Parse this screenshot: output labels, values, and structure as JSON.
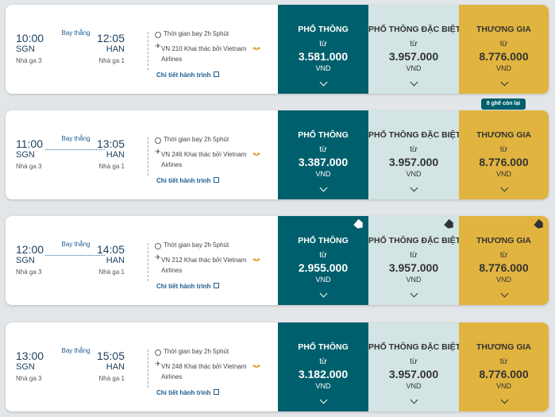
{
  "flights": [
    {
      "dep_time": "10:00",
      "dep_city": "SGN",
      "dep_terminal": "Nhà ga 3",
      "arr_time": "12:05",
      "arr_city": "HAN",
      "arr_terminal": "Nhà ga 1",
      "nonstop": "Bay thẳng",
      "duration": "Thời gian bay 2h 5phút",
      "flight_info": "VN 210 Khai thác bởi Vietnam Airlines",
      "details": "Chi tiết hành trình",
      "fares": [
        {
          "class": "PHỔ THÔNG",
          "from": "từ",
          "price": "3.581.000",
          "currency": "VND"
        },
        {
          "class": "PHỔ THÔNG ĐẶC BIỆT",
          "from": "từ",
          "price": "3.957.000",
          "currency": "VND"
        },
        {
          "class": "THƯƠNG GIA",
          "from": "từ",
          "price": "8.776.000",
          "currency": "VND"
        }
      ]
    },
    {
      "dep_time": "11:00",
      "dep_city": "SGN",
      "dep_terminal": "Nhà ga 3",
      "arr_time": "13:05",
      "arr_city": "HAN",
      "arr_terminal": "Nhà ga 1",
      "nonstop": "Bay thẳng",
      "duration": "Thời gian bay 2h 5phút",
      "flight_info": "VN 246 Khai thác bởi Vietnam Airlines",
      "details": "Chi tiết hành trình",
      "seats_left": "8 ghế còn lại",
      "fares": [
        {
          "class": "PHỔ THÔNG",
          "from": "từ",
          "price": "3.387.000",
          "currency": "VND"
        },
        {
          "class": "PHỔ THÔNG ĐẶC BIỆT",
          "from": "từ",
          "price": "3.957.000",
          "currency": "VND"
        },
        {
          "class": "THƯƠNG GIA",
          "from": "từ",
          "price": "8.776.000",
          "currency": "VND"
        }
      ]
    },
    {
      "dep_time": "12:00",
      "dep_city": "SGN",
      "dep_terminal": "Nhà ga 3",
      "arr_time": "14:05",
      "arr_city": "HAN",
      "arr_terminal": "Nhà ga 1",
      "nonstop": "Bay thẳng",
      "duration": "Thời gian bay 2h 5phút",
      "flight_info": "VN 212 Khai thác bởi Vietnam Airlines",
      "details": "Chi tiết hành trình",
      "fares": [
        {
          "class": "PHỔ THÔNG",
          "from": "từ",
          "price": "2.955.000",
          "currency": "VND"
        },
        {
          "class": "PHỔ THÔNG ĐẶC BIỆT",
          "from": "từ",
          "price": "3.957.000",
          "currency": "VND"
        },
        {
          "class": "THƯƠNG GIA",
          "from": "từ",
          "price": "8.776.000",
          "currency": "VND"
        }
      ]
    },
    {
      "dep_time": "13:00",
      "dep_city": "SGN",
      "dep_terminal": "Nhà ga 3",
      "arr_time": "15:05",
      "arr_city": "HAN",
      "arr_terminal": "Nhà ga 1",
      "nonstop": "Bay thẳng",
      "duration": "Thời gian bay 2h 5phút",
      "flight_info": "VN 248 Khai thác bởi Vietnam Airlines",
      "details": "Chi tiết hành trình",
      "fares": [
        {
          "class": "PHỔ THÔNG",
          "from": "từ",
          "price": "3.182.000",
          "currency": "VND"
        },
        {
          "class": "PHỔ THÔNG ĐẶC BIỆT",
          "from": "từ",
          "price": "3.957.000",
          "currency": "VND"
        },
        {
          "class": "THƯƠNG GIA",
          "from": "từ",
          "price": "8.776.000",
          "currency": "VND"
        }
      ]
    }
  ],
  "colors": {
    "economy": "#005f6c",
    "premium_economy": "#d3e4e5",
    "business": "#e1b43f",
    "link": "#1c5c8f"
  },
  "icons": [
    "clock-icon",
    "plane-icon",
    "lotus-icon",
    "external-link-icon",
    "chevron-down-icon",
    "tag-icon"
  ]
}
